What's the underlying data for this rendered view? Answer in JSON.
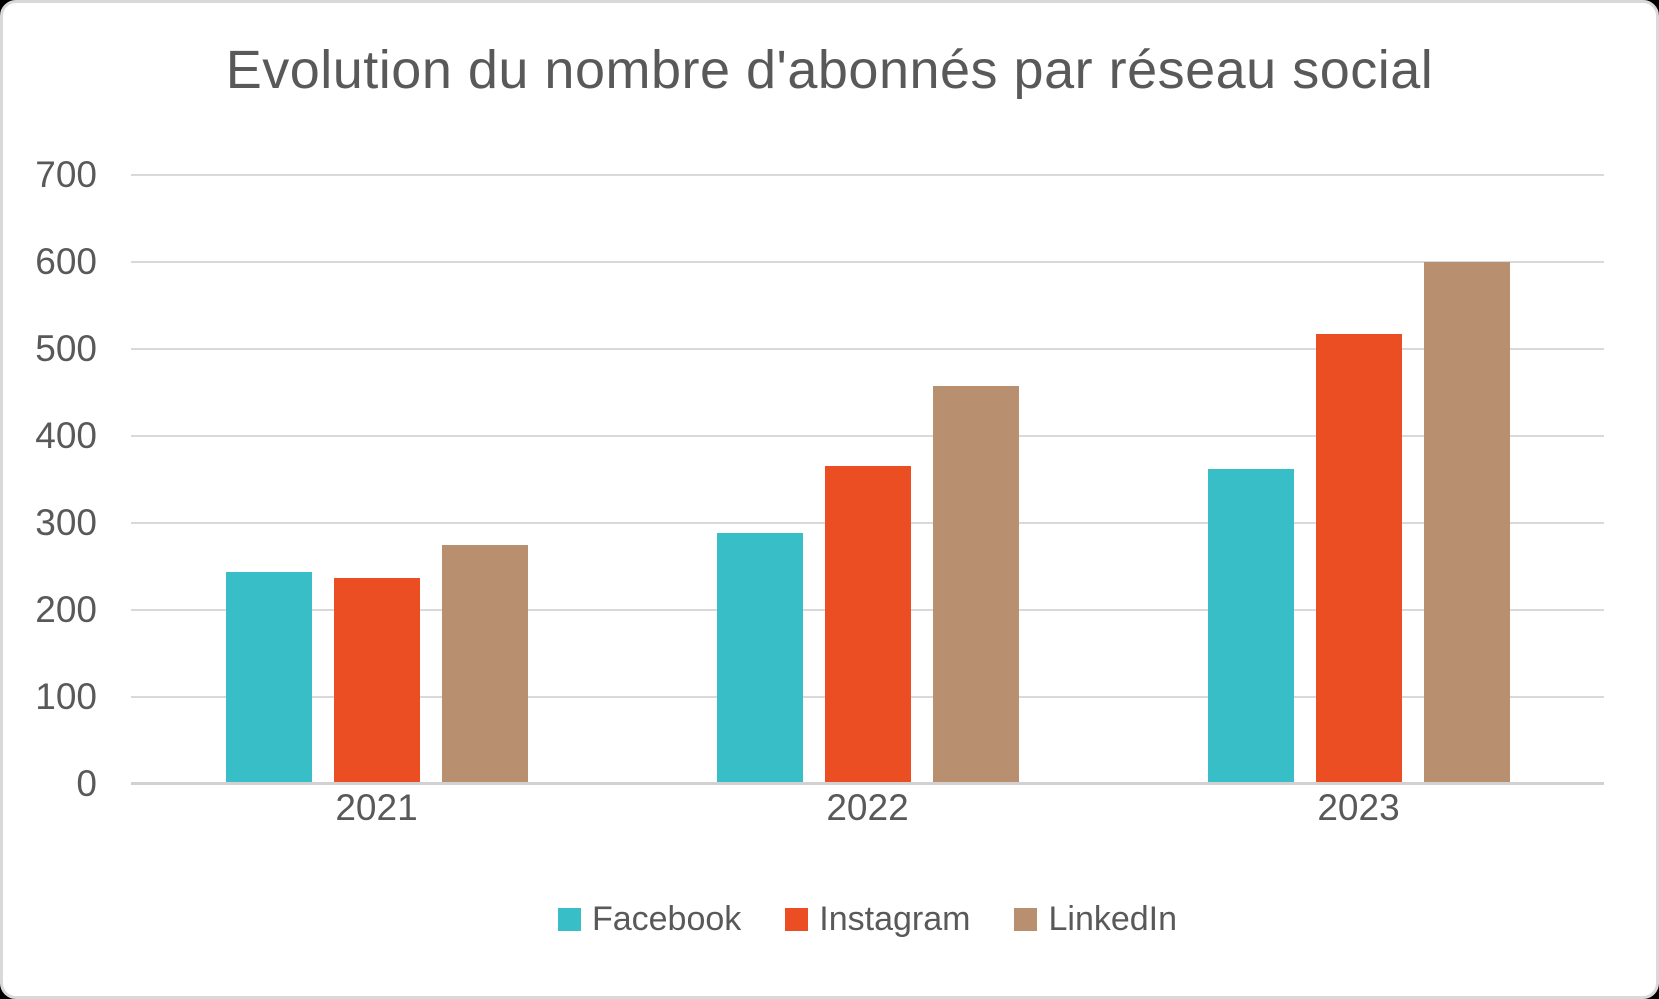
{
  "chart_data": {
    "type": "bar",
    "title": "Evolution du nombre d'abonnés par réseau social",
    "categories": [
      "2021",
      "2022",
      "2023"
    ],
    "series": [
      {
        "name": "Facebook",
        "color": "#38BEC7",
        "values": [
          244,
          289,
          362
        ]
      },
      {
        "name": "Instagram",
        "color": "#EC4E24",
        "values": [
          237,
          366,
          517
        ]
      },
      {
        "name": "LinkedIn",
        "color": "#B9906F",
        "values": [
          275,
          457,
          600
        ]
      }
    ],
    "xlabel": "",
    "ylabel": "",
    "ylim": [
      0,
      700
    ],
    "yticks": [
      0,
      100,
      200,
      300,
      400,
      500,
      600,
      700
    ],
    "grid": true,
    "legend_position": "bottom"
  },
  "colors": {
    "text": "#595959",
    "grid": "#D9D9D9",
    "axis": "#D2D0D0",
    "background": "#FFFFFF",
    "frame_border": "#D9D9D9"
  }
}
